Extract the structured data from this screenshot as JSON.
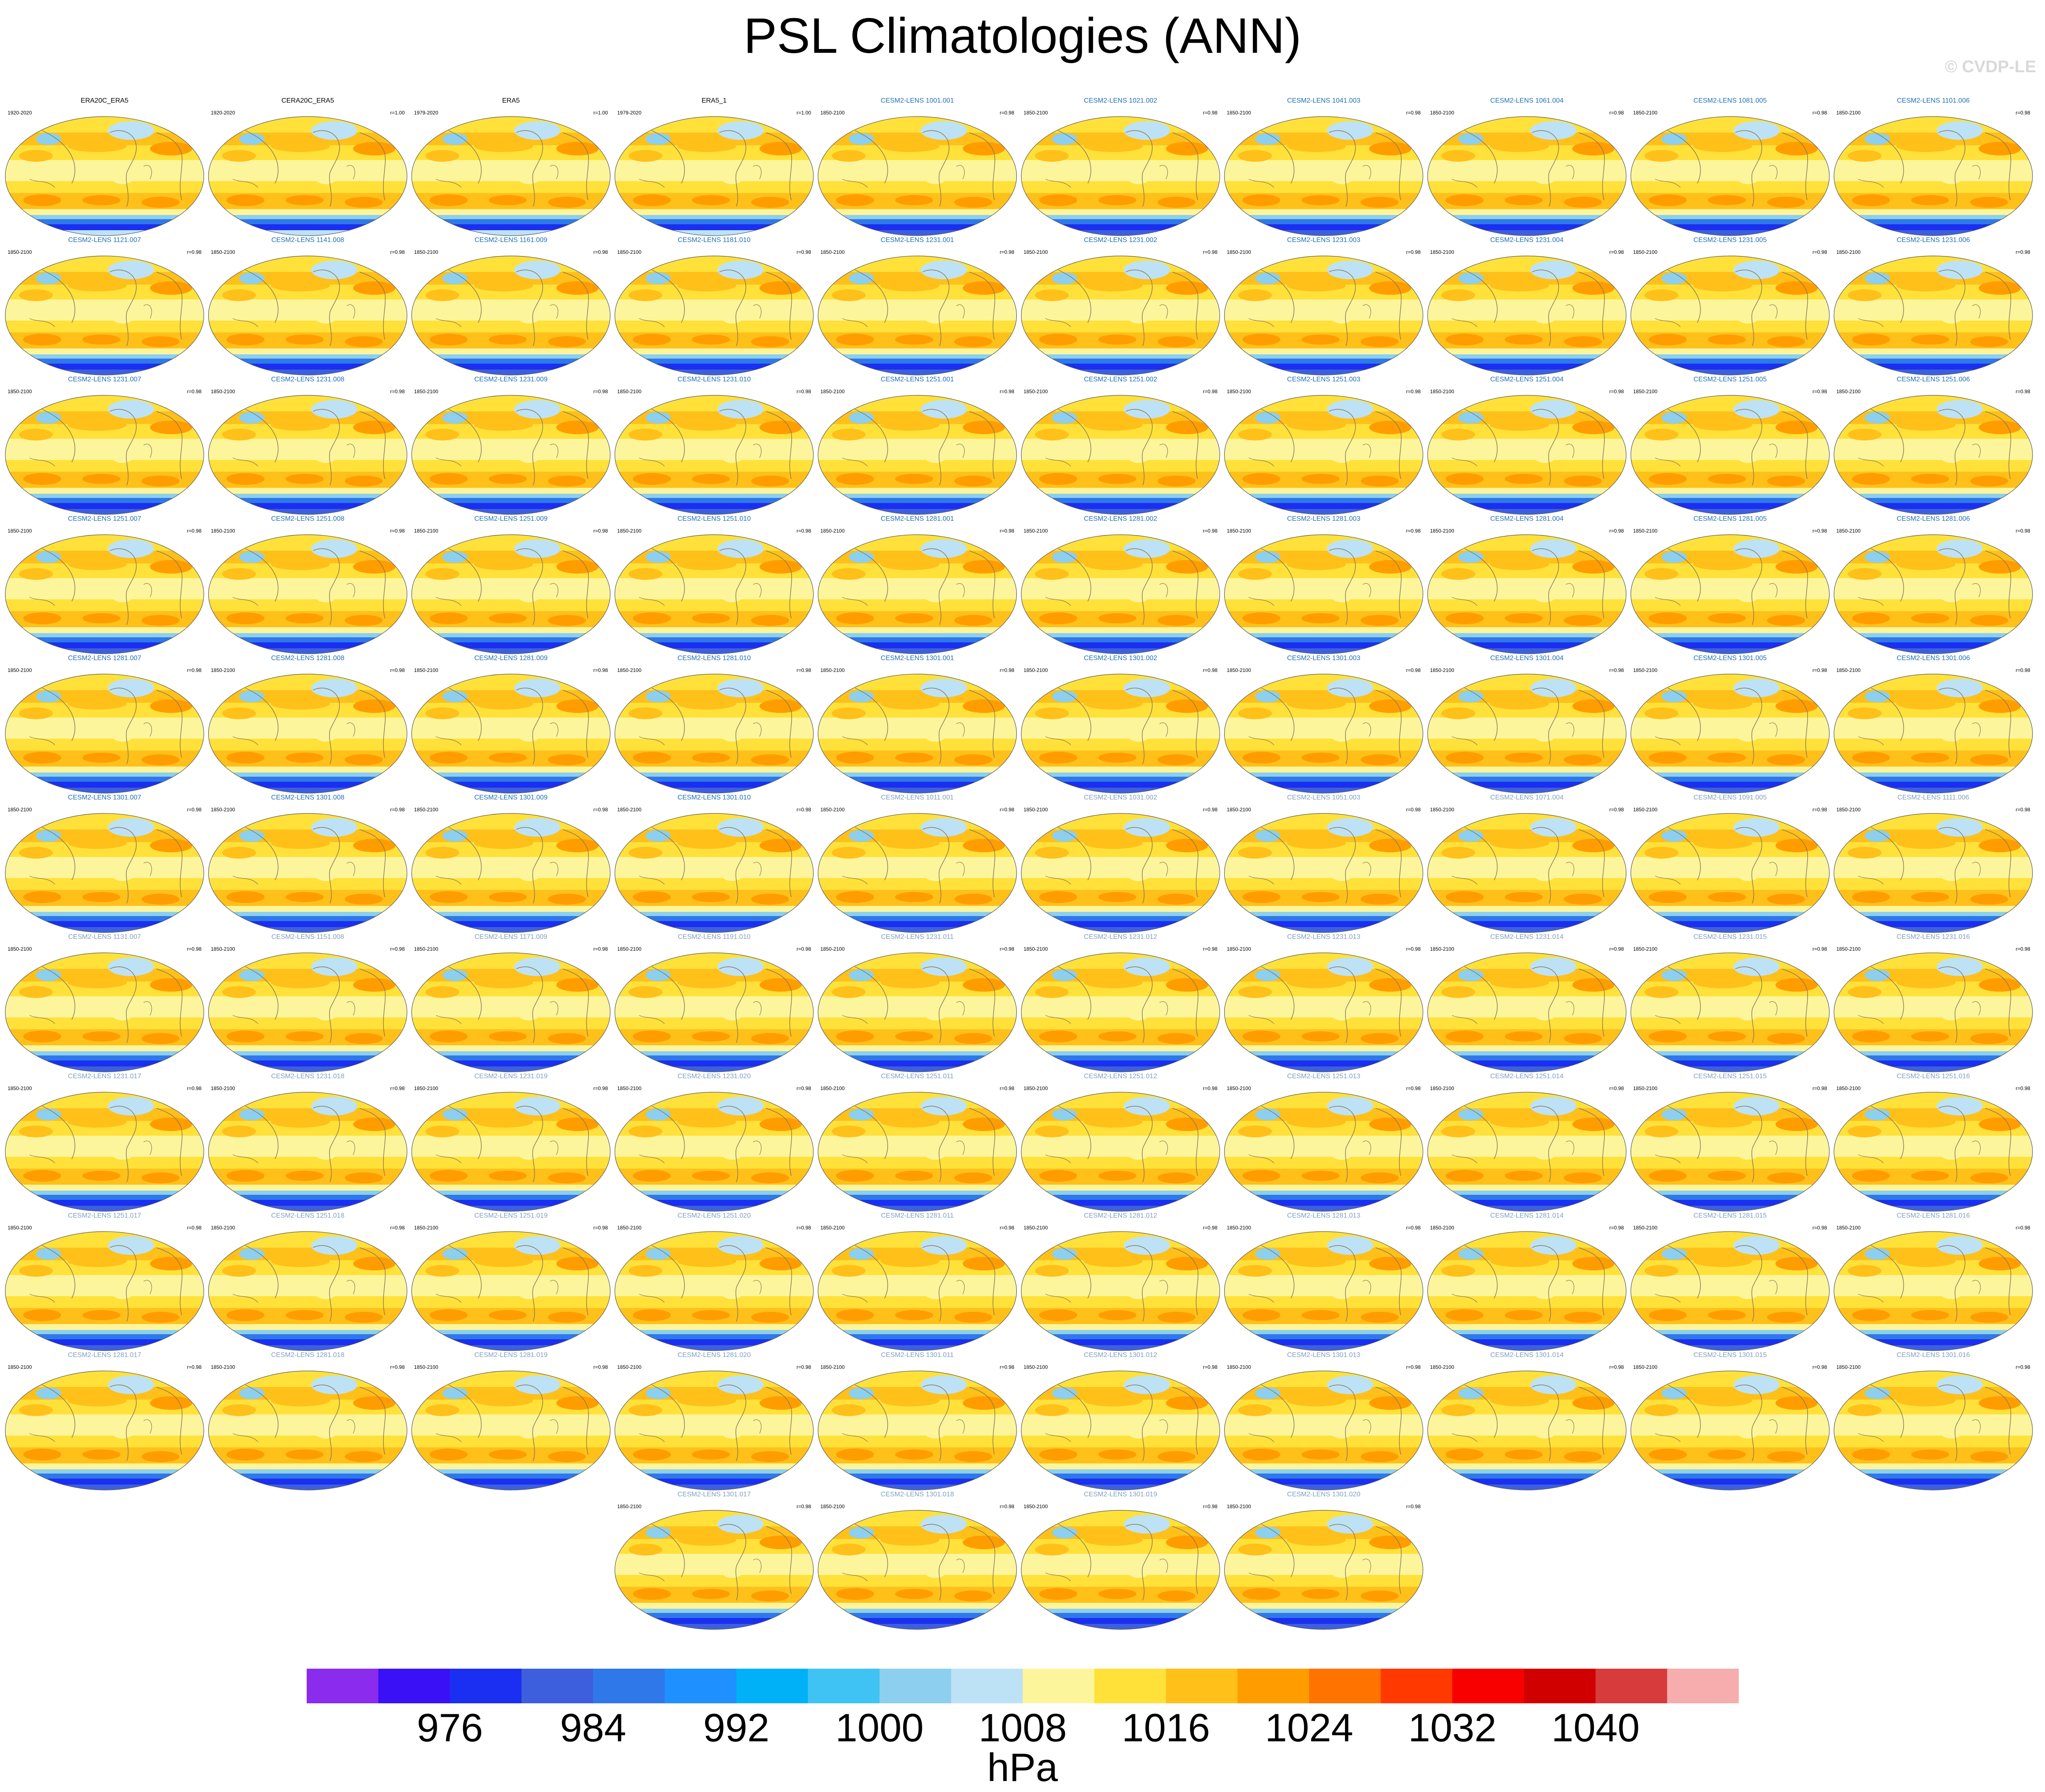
{
  "title": "PSL Climatologies (ANN)",
  "watermark": "© CVDP-LE",
  "units": "hPa",
  "colorbar": {
    "colors": [
      "#8a2bee",
      "#3a10f7",
      "#1a2ff1",
      "#3e5fdd",
      "#2f78ea",
      "#1e90ff",
      "#00b1f7",
      "#3fc3f5",
      "#8ccfee",
      "#bde2f5",
      "#fdf59c",
      "#ffe13a",
      "#ffc01a",
      "#ff9d00",
      "#ff7400",
      "#ff3900",
      "#f80000",
      "#d00000",
      "#d73b3b",
      "#f7adad"
    ],
    "labels": [
      "976",
      "984",
      "992",
      "1000",
      "1008",
      "1016",
      "1024",
      "1032",
      "1040"
    ]
  },
  "panels": [
    {
      "title": "ERA20C_ERA5",
      "years": "1920-2020",
      "r": "",
      "kind": "obs"
    },
    {
      "title": "CERA20C_ERA5",
      "years": "1920-2020",
      "r": "r=1.00",
      "kind": "obs"
    },
    {
      "title": "ERA5",
      "years": "1979-2020",
      "r": "r=1.00",
      "kind": "obs"
    },
    {
      "title": "ERA5_1",
      "years": "1979-2020",
      "r": "r=1.00",
      "kind": "obs"
    },
    {
      "title": "CESM2-LENS 1001.001",
      "years": "1850-2100",
      "r": "r=0.98",
      "kind": "model"
    },
    {
      "title": "CESM2-LENS 1021.002",
      "years": "1850-2100",
      "r": "r=0.98",
      "kind": "model"
    },
    {
      "title": "CESM2-LENS 1041.003",
      "years": "1850-2100",
      "r": "r=0.98",
      "kind": "model"
    },
    {
      "title": "CESM2-LENS 1061.004",
      "years": "1850-2100",
      "r": "r=0.98",
      "kind": "model"
    },
    {
      "title": "CESM2-LENS 1081.005",
      "years": "1850-2100",
      "r": "r=0.98",
      "kind": "model"
    },
    {
      "title": "CESM2-LENS 1101.006",
      "years": "1850-2100",
      "r": "r=0.98",
      "kind": "model"
    },
    {
      "title": "CESM2-LENS 1121.007",
      "years": "1850-2100",
      "r": "r=0.98",
      "kind": "model"
    },
    {
      "title": "CESM2-LENS 1141.008",
      "years": "1850-2100",
      "r": "r=0.98",
      "kind": "model"
    },
    {
      "title": "CESM2-LENS 1161.009",
      "years": "1850-2100",
      "r": "r=0.98",
      "kind": "model"
    },
    {
      "title": "CESM2-LENS 1181.010",
      "years": "1850-2100",
      "r": "r=0.98",
      "kind": "model"
    },
    {
      "title": "CESM2-LENS 1231.001",
      "years": "1850-2100",
      "r": "r=0.98",
      "kind": "model"
    },
    {
      "title": "CESM2-LENS 1231.002",
      "years": "1850-2100",
      "r": "r=0.98",
      "kind": "model"
    },
    {
      "title": "CESM2-LENS 1231.003",
      "years": "1850-2100",
      "r": "r=0.98",
      "kind": "model"
    },
    {
      "title": "CESM2-LENS 1231.004",
      "years": "1850-2100",
      "r": "r=0.98",
      "kind": "model"
    },
    {
      "title": "CESM2-LENS 1231.005",
      "years": "1850-2100",
      "r": "r=0.98",
      "kind": "model"
    },
    {
      "title": "CESM2-LENS 1231.006",
      "years": "1850-2100",
      "r": "r=0.98",
      "kind": "model"
    },
    {
      "title": "CESM2-LENS 1231.007",
      "years": "1850-2100",
      "r": "r=0.98",
      "kind": "model"
    },
    {
      "title": "CESM2-LENS 1231.008",
      "years": "1850-2100",
      "r": "r=0.98",
      "kind": "model"
    },
    {
      "title": "CESM2-LENS 1231.009",
      "years": "1850-2100",
      "r": "r=0.98",
      "kind": "model"
    },
    {
      "title": "CESM2-LENS 1231.010",
      "years": "1850-2100",
      "r": "r=0.98",
      "kind": "model"
    },
    {
      "title": "CESM2-LENS 1251.001",
      "years": "1850-2100",
      "r": "r=0.98",
      "kind": "model"
    },
    {
      "title": "CESM2-LENS 1251.002",
      "years": "1850-2100",
      "r": "r=0.98",
      "kind": "model"
    },
    {
      "title": "CESM2-LENS 1251.003",
      "years": "1850-2100",
      "r": "r=0.98",
      "kind": "model"
    },
    {
      "title": "CESM2-LENS 1251.004",
      "years": "1850-2100",
      "r": "r=0.98",
      "kind": "model"
    },
    {
      "title": "CESM2-LENS 1251.005",
      "years": "1850-2100",
      "r": "r=0.98",
      "kind": "model"
    },
    {
      "title": "CESM2-LENS 1251.006",
      "years": "1850-2100",
      "r": "r=0.98",
      "kind": "model"
    },
    {
      "title": "CESM2-LENS 1251.007",
      "years": "1850-2100",
      "r": "r=0.98",
      "kind": "model"
    },
    {
      "title": "CESM2-LENS 1251.008",
      "years": "1850-2100",
      "r": "r=0.98",
      "kind": "model"
    },
    {
      "title": "CESM2-LENS 1251.009",
      "years": "1850-2100",
      "r": "r=0.98",
      "kind": "model"
    },
    {
      "title": "CESM2-LENS 1251.010",
      "years": "1850-2100",
      "r": "r=0.98",
      "kind": "model"
    },
    {
      "title": "CESM2-LENS 1281.001",
      "years": "1850-2100",
      "r": "r=0.98",
      "kind": "model"
    },
    {
      "title": "CESM2-LENS 1281.002",
      "years": "1850-2100",
      "r": "r=0.98",
      "kind": "model"
    },
    {
      "title": "CESM2-LENS 1281.003",
      "years": "1850-2100",
      "r": "r=0.98",
      "kind": "model"
    },
    {
      "title": "CESM2-LENS 1281.004",
      "years": "1850-2100",
      "r": "r=0.98",
      "kind": "model"
    },
    {
      "title": "CESM2-LENS 1281.005",
      "years": "1850-2100",
      "r": "r=0.98",
      "kind": "model"
    },
    {
      "title": "CESM2-LENS 1281.006",
      "years": "1850-2100",
      "r": "r=0.98",
      "kind": "model"
    },
    {
      "title": "CESM2-LENS 1281.007",
      "years": "1850-2100",
      "r": "r=0.98",
      "kind": "model"
    },
    {
      "title": "CESM2-LENS 1281.008",
      "years": "1850-2100",
      "r": "r=0.98",
      "kind": "model"
    },
    {
      "title": "CESM2-LENS 1281.009",
      "years": "1850-2100",
      "r": "r=0.98",
      "kind": "model"
    },
    {
      "title": "CESM2-LENS 1281.010",
      "years": "1850-2100",
      "r": "r=0.98",
      "kind": "model"
    },
    {
      "title": "CESM2-LENS 1301.001",
      "years": "1850-2100",
      "r": "r=0.98",
      "kind": "model"
    },
    {
      "title": "CESM2-LENS 1301.002",
      "years": "1850-2100",
      "r": "r=0.98",
      "kind": "model"
    },
    {
      "title": "CESM2-LENS 1301.003",
      "years": "1850-2100",
      "r": "r=0.98",
      "kind": "model"
    },
    {
      "title": "CESM2-LENS 1301.004",
      "years": "1850-2100",
      "r": "r=0.98",
      "kind": "model"
    },
    {
      "title": "CESM2-LENS 1301.005",
      "years": "1850-2100",
      "r": "r=0.98",
      "kind": "model"
    },
    {
      "title": "CESM2-LENS 1301.006",
      "years": "1850-2100",
      "r": "r=0.98",
      "kind": "model"
    },
    {
      "title": "CESM2-LENS 1301.007",
      "years": "1850-2100",
      "r": "r=0.98",
      "kind": "model"
    },
    {
      "title": "CESM2-LENS 1301.008",
      "years": "1850-2100",
      "r": "r=0.98",
      "kind": "model"
    },
    {
      "title": "CESM2-LENS 1301.009",
      "years": "1850-2100",
      "r": "r=0.98",
      "kind": "model"
    },
    {
      "title": "CESM2-LENS 1301.010",
      "years": "1850-2100",
      "r": "r=0.98",
      "kind": "model"
    },
    {
      "title": "CESM2-LENS 1011.001",
      "years": "1850-2100",
      "r": "r=0.98",
      "kind": "model2"
    },
    {
      "title": "CESM2-LENS 1031.002",
      "years": "1850-2100",
      "r": "r=0.98",
      "kind": "model2"
    },
    {
      "title": "CESM2-LENS 1051.003",
      "years": "1850-2100",
      "r": "r=0.98",
      "kind": "model2"
    },
    {
      "title": "CESM2-LENS 1071.004",
      "years": "1850-2100",
      "r": "r=0.98",
      "kind": "model2"
    },
    {
      "title": "CESM2-LENS 1091.005",
      "years": "1850-2100",
      "r": "r=0.98",
      "kind": "model2"
    },
    {
      "title": "CESM2-LENS 1111.006",
      "years": "1850-2100",
      "r": "r=0.98",
      "kind": "model2"
    },
    {
      "title": "CESM2-LENS 1131.007",
      "years": "1850-2100",
      "r": "r=0.98",
      "kind": "model2"
    },
    {
      "title": "CESM2-LENS 1151.008",
      "years": "1850-2100",
      "r": "r=0.98",
      "kind": "model2"
    },
    {
      "title": "CESM2-LENS 1171.009",
      "years": "1850-2100",
      "r": "r=0.98",
      "kind": "model2"
    },
    {
      "title": "CESM2-LENS 1191.010",
      "years": "1850-2100",
      "r": "r=0.98",
      "kind": "model2"
    },
    {
      "title": "CESM2-LENS 1231.011",
      "years": "1850-2100",
      "r": "r=0.98",
      "kind": "model2"
    },
    {
      "title": "CESM2-LENS 1231.012",
      "years": "1850-2100",
      "r": "r=0.98",
      "kind": "model2"
    },
    {
      "title": "CESM2-LENS 1231.013",
      "years": "1850-2100",
      "r": "r=0.98",
      "kind": "model2"
    },
    {
      "title": "CESM2-LENS 1231.014",
      "years": "1850-2100",
      "r": "r=0.98",
      "kind": "model2"
    },
    {
      "title": "CESM2-LENS 1231.015",
      "years": "1850-2100",
      "r": "r=0.98",
      "kind": "model2"
    },
    {
      "title": "CESM2-LENS 1231.016",
      "years": "1850-2100",
      "r": "r=0.98",
      "kind": "model2"
    },
    {
      "title": "CESM2-LENS 1231.017",
      "years": "1850-2100",
      "r": "r=0.98",
      "kind": "model2"
    },
    {
      "title": "CESM2-LENS 1231.018",
      "years": "1850-2100",
      "r": "r=0.98",
      "kind": "model2"
    },
    {
      "title": "CESM2-LENS 1231.019",
      "years": "1850-2100",
      "r": "r=0.98",
      "kind": "model2"
    },
    {
      "title": "CESM2-LENS 1231.020",
      "years": "1850-2100",
      "r": "r=0.98",
      "kind": "model2"
    },
    {
      "title": "CESM2-LENS 1251.011",
      "years": "1850-2100",
      "r": "r=0.98",
      "kind": "model2"
    },
    {
      "title": "CESM2-LENS 1251.012",
      "years": "1850-2100",
      "r": "r=0.98",
      "kind": "model2"
    },
    {
      "title": "CESM2-LENS 1251.013",
      "years": "1850-2100",
      "r": "r=0.98",
      "kind": "model2"
    },
    {
      "title": "CESM2-LENS 1251.014",
      "years": "1850-2100",
      "r": "r=0.98",
      "kind": "model2"
    },
    {
      "title": "CESM2-LENS 1251.015",
      "years": "1850-2100",
      "r": "r=0.98",
      "kind": "model2"
    },
    {
      "title": "CESM2-LENS 1251.016",
      "years": "1850-2100",
      "r": "r=0.98",
      "kind": "model2"
    },
    {
      "title": "CESM2-LENS 1251.017",
      "years": "1850-2100",
      "r": "r=0.98",
      "kind": "model2"
    },
    {
      "title": "CESM2-LENS 1251.018",
      "years": "1850-2100",
      "r": "r=0.98",
      "kind": "model2"
    },
    {
      "title": "CESM2-LENS 1251.019",
      "years": "1850-2100",
      "r": "r=0.98",
      "kind": "model2"
    },
    {
      "title": "CESM2-LENS 1251.020",
      "years": "1850-2100",
      "r": "r=0.98",
      "kind": "model2"
    },
    {
      "title": "CESM2-LENS 1281.011",
      "years": "1850-2100",
      "r": "r=0.98",
      "kind": "model2"
    },
    {
      "title": "CESM2-LENS 1281.012",
      "years": "1850-2100",
      "r": "r=0.98",
      "kind": "model2"
    },
    {
      "title": "CESM2-LENS 1281.013",
      "years": "1850-2100",
      "r": "r=0.98",
      "kind": "model2"
    },
    {
      "title": "CESM2-LENS 1281.014",
      "years": "1850-2100",
      "r": "r=0.98",
      "kind": "model2"
    },
    {
      "title": "CESM2-LENS 1281.015",
      "years": "1850-2100",
      "r": "r=0.98",
      "kind": "model2"
    },
    {
      "title": "CESM2-LENS 1281.016",
      "years": "1850-2100",
      "r": "r=0.98",
      "kind": "model2"
    },
    {
      "title": "CESM2-LENS 1281.017",
      "years": "1850-2100",
      "r": "r=0.98",
      "kind": "model2"
    },
    {
      "title": "CESM2-LENS 1281.018",
      "years": "1850-2100",
      "r": "r=0.98",
      "kind": "model2"
    },
    {
      "title": "CESM2-LENS 1281.019",
      "years": "1850-2100",
      "r": "r=0.98",
      "kind": "model2"
    },
    {
      "title": "CESM2-LENS 1281.020",
      "years": "1850-2100",
      "r": "r=0.98",
      "kind": "model2"
    },
    {
      "title": "CESM2-LENS 1301.011",
      "years": "1850-2100",
      "r": "r=0.98",
      "kind": "model2"
    },
    {
      "title": "CESM2-LENS 1301.012",
      "years": "1850-2100",
      "r": "r=0.98",
      "kind": "model2"
    },
    {
      "title": "CESM2-LENS 1301.013",
      "years": "1850-2100",
      "r": "r=0.98",
      "kind": "model2"
    },
    {
      "title": "CESM2-LENS 1301.014",
      "years": "1850-2100",
      "r": "r=0.98",
      "kind": "model2"
    },
    {
      "title": "CESM2-LENS 1301.015",
      "years": "1850-2100",
      "r": "r=0.98",
      "kind": "model2"
    },
    {
      "title": "CESM2-LENS 1301.016",
      "years": "1850-2100",
      "r": "r=0.98",
      "kind": "model2"
    },
    {
      "title": "CESM2-LENS 1301.017",
      "years": "1850-2100",
      "r": "r=0.98",
      "kind": "model2"
    },
    {
      "title": "CESM2-LENS 1301.018",
      "years": "1850-2100",
      "r": "r=0.98",
      "kind": "model2"
    },
    {
      "title": "CESM2-LENS 1301.019",
      "years": "1850-2100",
      "r": "r=0.98",
      "kind": "model2"
    },
    {
      "title": "CESM2-LENS 1301.020",
      "years": "1850-2100",
      "r": "r=0.98",
      "kind": "model2"
    }
  ],
  "title_colors": {
    "obs": "#000000",
    "model": "#1f6fb4",
    "model2": "#7f9fbf"
  }
}
